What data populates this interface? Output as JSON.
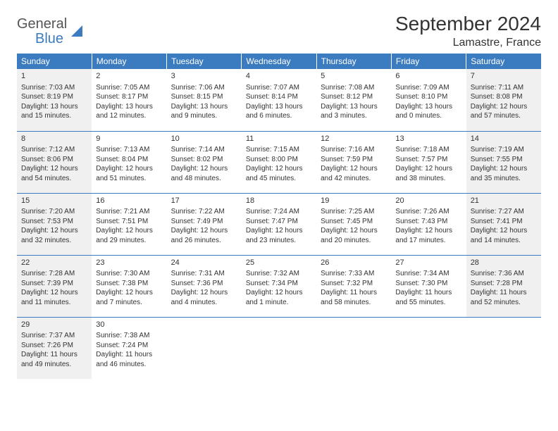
{
  "logo": {
    "general": "General",
    "blue": "Blue"
  },
  "title": "September 2024",
  "location": "Lamastre, France",
  "colors": {
    "header_bg": "#3b7bbf",
    "header_text": "#ffffff",
    "border": "#3b7bbf",
    "shaded_bg": "#f0f0f0",
    "text": "#333333",
    "logo_gray": "#555555",
    "logo_blue": "#3b7bbf",
    "page_bg": "#ffffff"
  },
  "day_headers": [
    "Sunday",
    "Monday",
    "Tuesday",
    "Wednesday",
    "Thursday",
    "Friday",
    "Saturday"
  ],
  "weeks": [
    [
      {
        "num": "1",
        "shaded": true,
        "sunrise": "Sunrise: 7:03 AM",
        "sunset": "Sunset: 8:19 PM",
        "day1": "Daylight: 13 hours",
        "day2": "and 15 minutes."
      },
      {
        "num": "2",
        "sunrise": "Sunrise: 7:05 AM",
        "sunset": "Sunset: 8:17 PM",
        "day1": "Daylight: 13 hours",
        "day2": "and 12 minutes."
      },
      {
        "num": "3",
        "sunrise": "Sunrise: 7:06 AM",
        "sunset": "Sunset: 8:15 PM",
        "day1": "Daylight: 13 hours",
        "day2": "and 9 minutes."
      },
      {
        "num": "4",
        "sunrise": "Sunrise: 7:07 AM",
        "sunset": "Sunset: 8:14 PM",
        "day1": "Daylight: 13 hours",
        "day2": "and 6 minutes."
      },
      {
        "num": "5",
        "sunrise": "Sunrise: 7:08 AM",
        "sunset": "Sunset: 8:12 PM",
        "day1": "Daylight: 13 hours",
        "day2": "and 3 minutes."
      },
      {
        "num": "6",
        "sunrise": "Sunrise: 7:09 AM",
        "sunset": "Sunset: 8:10 PM",
        "day1": "Daylight: 13 hours",
        "day2": "and 0 minutes."
      },
      {
        "num": "7",
        "shaded": true,
        "sunrise": "Sunrise: 7:11 AM",
        "sunset": "Sunset: 8:08 PM",
        "day1": "Daylight: 12 hours",
        "day2": "and 57 minutes."
      }
    ],
    [
      {
        "num": "8",
        "shaded": true,
        "sunrise": "Sunrise: 7:12 AM",
        "sunset": "Sunset: 8:06 PM",
        "day1": "Daylight: 12 hours",
        "day2": "and 54 minutes."
      },
      {
        "num": "9",
        "sunrise": "Sunrise: 7:13 AM",
        "sunset": "Sunset: 8:04 PM",
        "day1": "Daylight: 12 hours",
        "day2": "and 51 minutes."
      },
      {
        "num": "10",
        "sunrise": "Sunrise: 7:14 AM",
        "sunset": "Sunset: 8:02 PM",
        "day1": "Daylight: 12 hours",
        "day2": "and 48 minutes."
      },
      {
        "num": "11",
        "sunrise": "Sunrise: 7:15 AM",
        "sunset": "Sunset: 8:00 PM",
        "day1": "Daylight: 12 hours",
        "day2": "and 45 minutes."
      },
      {
        "num": "12",
        "sunrise": "Sunrise: 7:16 AM",
        "sunset": "Sunset: 7:59 PM",
        "day1": "Daylight: 12 hours",
        "day2": "and 42 minutes."
      },
      {
        "num": "13",
        "sunrise": "Sunrise: 7:18 AM",
        "sunset": "Sunset: 7:57 PM",
        "day1": "Daylight: 12 hours",
        "day2": "and 38 minutes."
      },
      {
        "num": "14",
        "shaded": true,
        "sunrise": "Sunrise: 7:19 AM",
        "sunset": "Sunset: 7:55 PM",
        "day1": "Daylight: 12 hours",
        "day2": "and 35 minutes."
      }
    ],
    [
      {
        "num": "15",
        "shaded": true,
        "sunrise": "Sunrise: 7:20 AM",
        "sunset": "Sunset: 7:53 PM",
        "day1": "Daylight: 12 hours",
        "day2": "and 32 minutes."
      },
      {
        "num": "16",
        "sunrise": "Sunrise: 7:21 AM",
        "sunset": "Sunset: 7:51 PM",
        "day1": "Daylight: 12 hours",
        "day2": "and 29 minutes."
      },
      {
        "num": "17",
        "sunrise": "Sunrise: 7:22 AM",
        "sunset": "Sunset: 7:49 PM",
        "day1": "Daylight: 12 hours",
        "day2": "and 26 minutes."
      },
      {
        "num": "18",
        "sunrise": "Sunrise: 7:24 AM",
        "sunset": "Sunset: 7:47 PM",
        "day1": "Daylight: 12 hours",
        "day2": "and 23 minutes."
      },
      {
        "num": "19",
        "sunrise": "Sunrise: 7:25 AM",
        "sunset": "Sunset: 7:45 PM",
        "day1": "Daylight: 12 hours",
        "day2": "and 20 minutes."
      },
      {
        "num": "20",
        "sunrise": "Sunrise: 7:26 AM",
        "sunset": "Sunset: 7:43 PM",
        "day1": "Daylight: 12 hours",
        "day2": "and 17 minutes."
      },
      {
        "num": "21",
        "shaded": true,
        "sunrise": "Sunrise: 7:27 AM",
        "sunset": "Sunset: 7:41 PM",
        "day1": "Daylight: 12 hours",
        "day2": "and 14 minutes."
      }
    ],
    [
      {
        "num": "22",
        "shaded": true,
        "sunrise": "Sunrise: 7:28 AM",
        "sunset": "Sunset: 7:39 PM",
        "day1": "Daylight: 12 hours",
        "day2": "and 11 minutes."
      },
      {
        "num": "23",
        "sunrise": "Sunrise: 7:30 AM",
        "sunset": "Sunset: 7:38 PM",
        "day1": "Daylight: 12 hours",
        "day2": "and 7 minutes."
      },
      {
        "num": "24",
        "sunrise": "Sunrise: 7:31 AM",
        "sunset": "Sunset: 7:36 PM",
        "day1": "Daylight: 12 hours",
        "day2": "and 4 minutes."
      },
      {
        "num": "25",
        "sunrise": "Sunrise: 7:32 AM",
        "sunset": "Sunset: 7:34 PM",
        "day1": "Daylight: 12 hours",
        "day2": "and 1 minute."
      },
      {
        "num": "26",
        "sunrise": "Sunrise: 7:33 AM",
        "sunset": "Sunset: 7:32 PM",
        "day1": "Daylight: 11 hours",
        "day2": "and 58 minutes."
      },
      {
        "num": "27",
        "sunrise": "Sunrise: 7:34 AM",
        "sunset": "Sunset: 7:30 PM",
        "day1": "Daylight: 11 hours",
        "day2": "and 55 minutes."
      },
      {
        "num": "28",
        "shaded": true,
        "sunrise": "Sunrise: 7:36 AM",
        "sunset": "Sunset: 7:28 PM",
        "day1": "Daylight: 11 hours",
        "day2": "and 52 minutes."
      }
    ],
    [
      {
        "num": "29",
        "shaded": true,
        "sunrise": "Sunrise: 7:37 AM",
        "sunset": "Sunset: 7:26 PM",
        "day1": "Daylight: 11 hours",
        "day2": "and 49 minutes."
      },
      {
        "num": "30",
        "sunrise": "Sunrise: 7:38 AM",
        "sunset": "Sunset: 7:24 PM",
        "day1": "Daylight: 11 hours",
        "day2": "and 46 minutes."
      },
      null,
      null,
      null,
      null,
      null
    ]
  ]
}
